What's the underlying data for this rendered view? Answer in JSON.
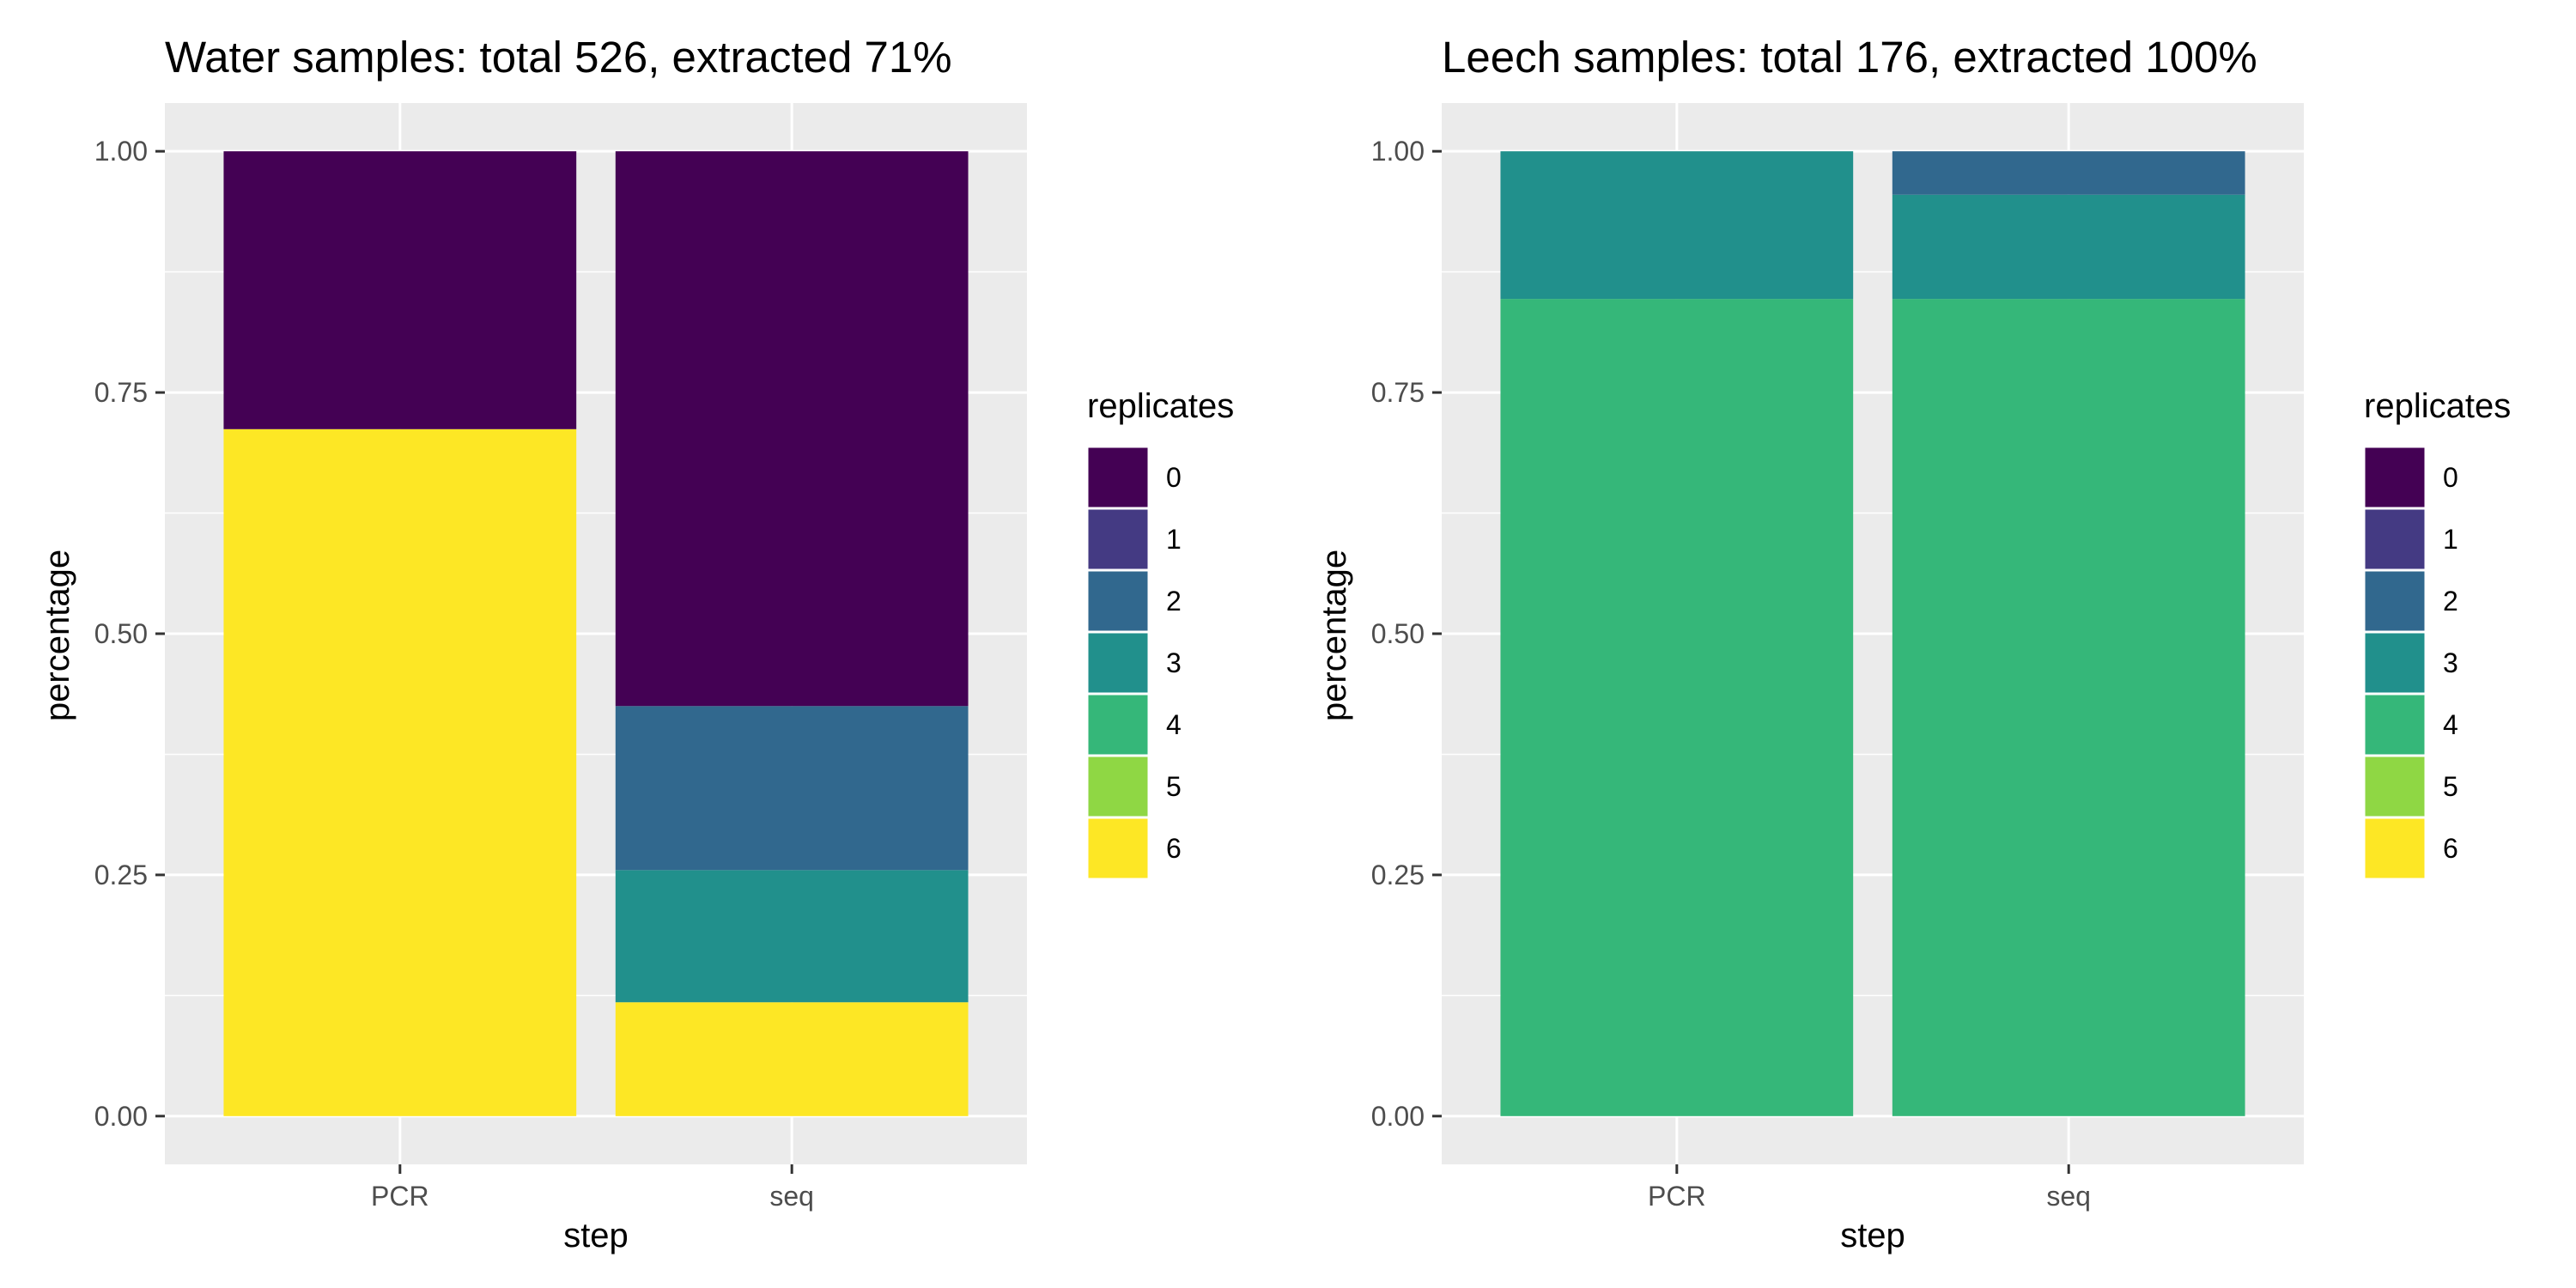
{
  "legend_title": "replicates",
  "legend_labels": [
    "0",
    "1",
    "2",
    "3",
    "4",
    "5",
    "6"
  ],
  "palette": {
    "0": "#440154",
    "1": "#443A83",
    "2": "#31688E",
    "3": "#21908C",
    "4": "#35B779",
    "5": "#8FD744",
    "6": "#FDE725"
  },
  "panel_background": "#EBEBEB",
  "grid_color": "#FFFFFF",
  "chart_data": [
    {
      "type": "bar",
      "stacked": true,
      "title": "Water samples: total 526, extracted 71%",
      "xlabel": "step",
      "ylabel": "percentage",
      "categories": [
        "PCR",
        "seq"
      ],
      "ylim": [
        -0.05,
        1.05
      ],
      "yticks": [
        0.0,
        0.25,
        0.5,
        0.75,
        1.0
      ],
      "ytick_labels": [
        "0.00",
        "0.25",
        "0.50",
        "0.75",
        "1.00"
      ],
      "grid": true,
      "legend_position": "right",
      "series": [
        {
          "name": "6",
          "values": [
            0.712,
            0.118
          ]
        },
        {
          "name": "5",
          "values": [
            0.0,
            0.0
          ]
        },
        {
          "name": "4",
          "values": [
            0.0,
            0.0
          ]
        },
        {
          "name": "3",
          "values": [
            0.0,
            0.137
          ]
        },
        {
          "name": "2",
          "values": [
            0.0,
            0.17
          ]
        },
        {
          "name": "1",
          "values": [
            0.0,
            0.0
          ]
        },
        {
          "name": "0",
          "values": [
            0.288,
            0.575
          ]
        }
      ]
    },
    {
      "type": "bar",
      "stacked": true,
      "title": "Leech samples: total 176, extracted 100%",
      "xlabel": "step",
      "ylabel": "percentage",
      "categories": [
        "PCR",
        "seq"
      ],
      "ylim": [
        -0.05,
        1.05
      ],
      "yticks": [
        0.0,
        0.25,
        0.5,
        0.75,
        1.0
      ],
      "ytick_labels": [
        "0.00",
        "0.25",
        "0.50",
        "0.75",
        "1.00"
      ],
      "grid": true,
      "legend_position": "right",
      "series": [
        {
          "name": "6",
          "values": [
            0.0,
            0.0
          ]
        },
        {
          "name": "5",
          "values": [
            0.0,
            0.0
          ]
        },
        {
          "name": "4",
          "values": [
            0.847,
            0.847
          ]
        },
        {
          "name": "3",
          "values": [
            0.153,
            0.108
          ]
        },
        {
          "name": "2",
          "values": [
            0.0,
            0.045
          ]
        },
        {
          "name": "1",
          "values": [
            0.0,
            0.0
          ]
        },
        {
          "name": "0",
          "values": [
            0.0,
            0.0
          ]
        }
      ]
    }
  ]
}
